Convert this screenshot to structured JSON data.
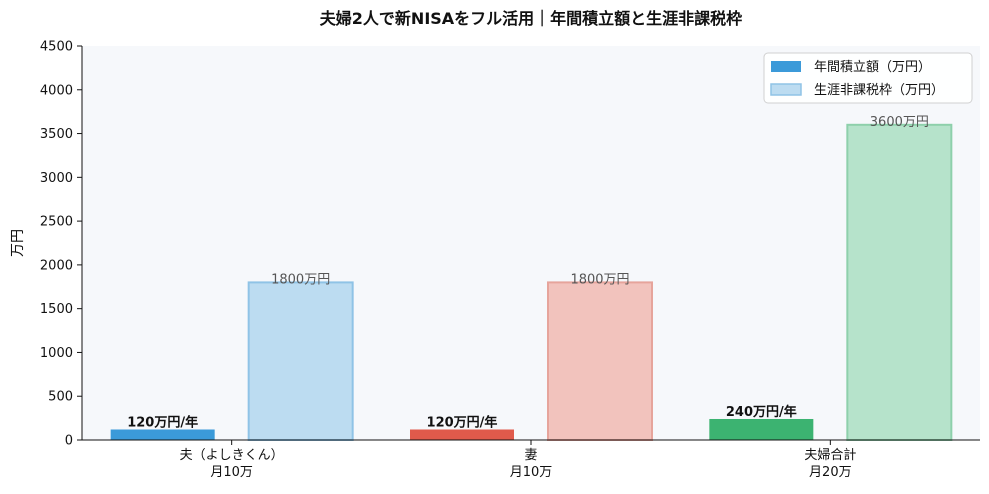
{
  "chart_data": {
    "type": "bar",
    "title": "夫婦2人で新NISAをフル活用｜年間積立額と生涯非課税枠",
    "ylabel": "万円",
    "xlabel": "",
    "ylim": [
      0,
      4500
    ],
    "yticks": [
      0,
      500,
      1000,
      1500,
      2000,
      2500,
      3000,
      3500,
      4000,
      4500
    ],
    "grid": false,
    "legend_position": "top-right",
    "categories": [
      {
        "line1": "夫（よしきくん）",
        "line2": "月10万"
      },
      {
        "line1": "妻",
        "line2": "月10万"
      },
      {
        "line1": "夫婦合計",
        "line2": "月20万"
      }
    ],
    "series": [
      {
        "name": "年間積立額（万円）",
        "values": [
          120,
          120,
          240
        ],
        "labels": [
          "120万円/年",
          "120万円/年",
          "240万円/年"
        ],
        "colors": [
          "#3b9ad9",
          "#e05a4b",
          "#3cb371"
        ]
      },
      {
        "name": "生涯非課税枠（万円）",
        "values": [
          1800,
          1800,
          3600
        ],
        "labels": [
          "1800万円",
          "1800万円",
          "3600万円"
        ],
        "colors": [
          "#bcdcf1",
          "#f2c3bd",
          "#b6e3cb"
        ],
        "edge_colors": [
          "#8fc3e6",
          "#e6a49b",
          "#8ed0ab"
        ]
      }
    ],
    "legend_colors": {
      "annual_fill": "#3b9ad9",
      "lifetime_fill": "#bcdcf1",
      "lifetime_edge": "#8fc3e6"
    },
    "plot_background": "#f6f8fb"
  }
}
